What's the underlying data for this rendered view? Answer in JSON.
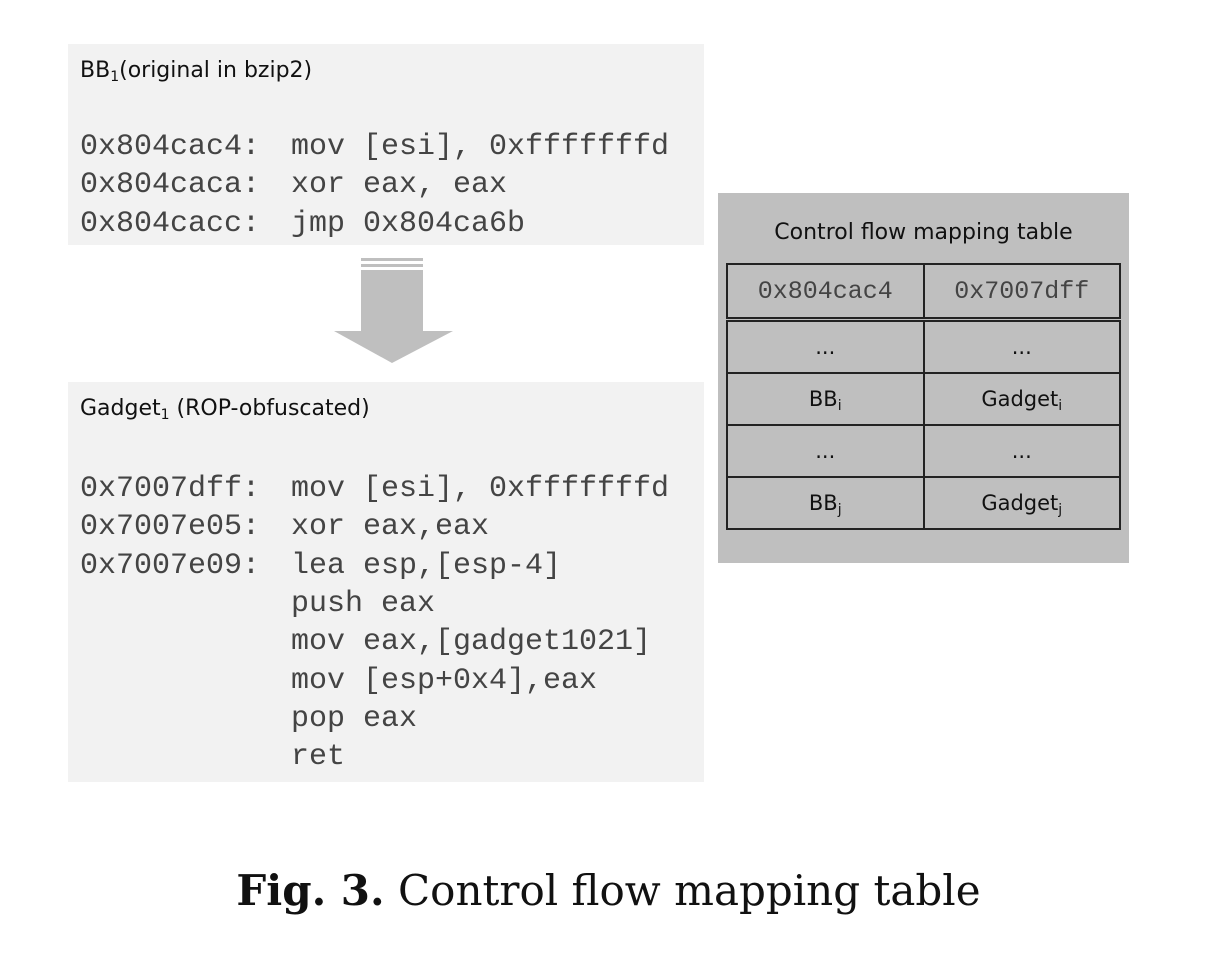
{
  "original": {
    "title": {
      "base": "BB",
      "sub": "1",
      "rest": "(original in bzip2)"
    },
    "lines": [
      {
        "addr": "0x804cac4:",
        "instr": "mov [esi], 0xfffffffd"
      },
      {
        "addr": "0x804caca:",
        "instr": "xor eax, eax"
      },
      {
        "addr": "0x804cacc:",
        "instr": "jmp 0x804ca6b"
      }
    ]
  },
  "gadget": {
    "title": {
      "base": "Gadget",
      "sub": "1",
      "rest": " (ROP-obfuscated)"
    },
    "lines": [
      {
        "addr": "0x7007dff:",
        "instr": "mov [esi], 0xfffffffd"
      },
      {
        "addr": "0x7007e05:",
        "instr": "xor eax,eax"
      },
      {
        "addr": "0x7007e09:",
        "instr": "lea esp,[esp-4]"
      },
      {
        "instr": "push eax"
      },
      {
        "instr": "mov eax,[gadget1021]"
      },
      {
        "instr": "mov [esp+0x4],eax"
      },
      {
        "instr": "pop eax"
      },
      {
        "instr": "ret"
      }
    ]
  },
  "table": {
    "title": "Control flow mapping table",
    "header": [
      "0x804cac4",
      "0x7007dff"
    ],
    "rows": [
      [
        {
          "base": "..."
        },
        {
          "base": "..."
        }
      ],
      [
        {
          "base": "BB",
          "sub": "i"
        },
        {
          "base": "Gadget",
          "sub": "i"
        }
      ],
      [
        {
          "base": "..."
        },
        {
          "base": "..."
        }
      ],
      [
        {
          "base": "BB",
          "sub": "j"
        },
        {
          "base": "Gadget",
          "sub": "j"
        }
      ]
    ]
  },
  "caption": {
    "label": "Fig. 3.",
    "text": "Control flow mapping table"
  }
}
